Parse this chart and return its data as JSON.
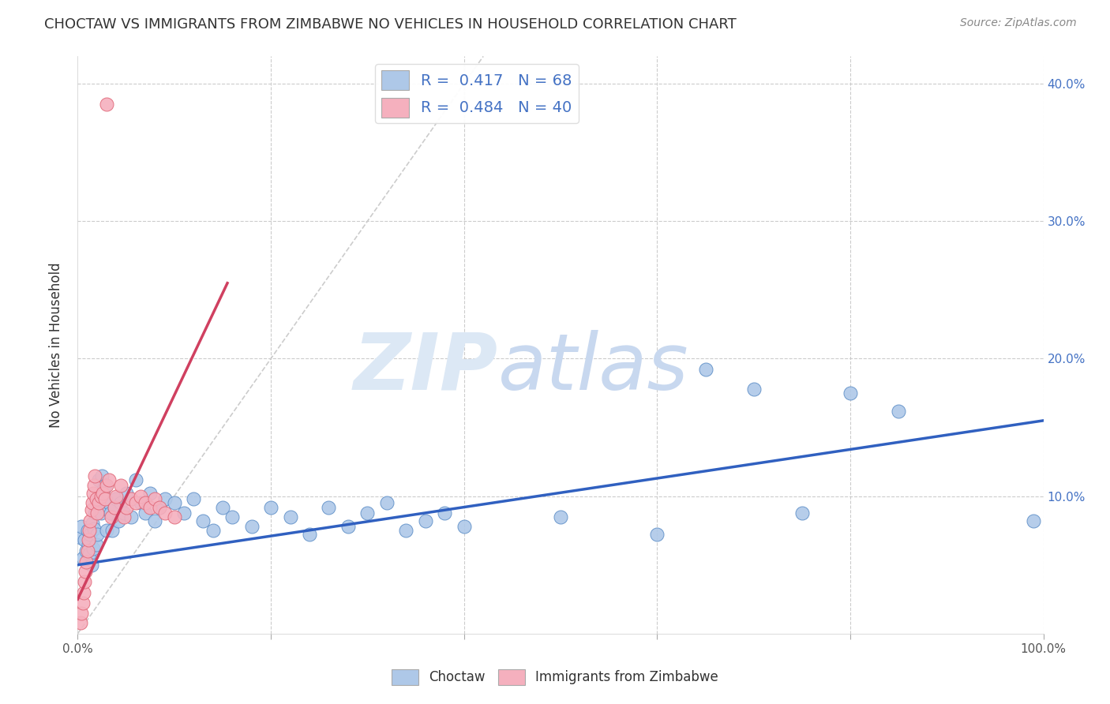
{
  "title": "CHOCTAW VS IMMIGRANTS FROM ZIMBABWE NO VEHICLES IN HOUSEHOLD CORRELATION CHART",
  "source": "Source: ZipAtlas.com",
  "ylabel": "No Vehicles in Household",
  "xlim": [
    0,
    1.0
  ],
  "ylim": [
    0,
    0.42
  ],
  "blue_R": 0.417,
  "blue_N": 68,
  "pink_R": 0.484,
  "pink_N": 40,
  "blue_color": "#aec8e8",
  "pink_color": "#f5b0be",
  "blue_edge_color": "#6090c8",
  "pink_edge_color": "#e06878",
  "blue_line_color": "#3060c0",
  "pink_line_color": "#d04060",
  "legend_label_blue": "Choctaw",
  "legend_label_pink": "Immigrants from Zimbabwe",
  "blue_trend_x": [
    0.0,
    1.0
  ],
  "blue_trend_y": [
    0.05,
    0.155
  ],
  "pink_trend_x": [
    0.0,
    0.155
  ],
  "pink_trend_y": [
    0.025,
    0.255
  ],
  "diag_line_x": [
    0.0,
    0.42
  ],
  "diag_line_y": [
    0.0,
    0.42
  ],
  "blue_scatter": [
    [
      0.003,
      0.07
    ],
    [
      0.004,
      0.078
    ],
    [
      0.005,
      0.055
    ],
    [
      0.007,
      0.068
    ],
    [
      0.009,
      0.06
    ],
    [
      0.01,
      0.075
    ],
    [
      0.011,
      0.065
    ],
    [
      0.012,
      0.058
    ],
    [
      0.013,
      0.072
    ],
    [
      0.014,
      0.05
    ],
    [
      0.015,
      0.08
    ],
    [
      0.016,
      0.062
    ],
    [
      0.017,
      0.076
    ],
    [
      0.018,
      0.088
    ],
    [
      0.019,
      0.065
    ],
    [
      0.02,
      0.072
    ],
    [
      0.022,
      0.112
    ],
    [
      0.023,
      0.095
    ],
    [
      0.024,
      0.088
    ],
    [
      0.025,
      0.115
    ],
    [
      0.026,
      0.098
    ],
    [
      0.027,
      0.105
    ],
    [
      0.028,
      0.108
    ],
    [
      0.03,
      0.075
    ],
    [
      0.032,
      0.095
    ],
    [
      0.034,
      0.088
    ],
    [
      0.036,
      0.075
    ],
    [
      0.038,
      0.092
    ],
    [
      0.04,
      0.098
    ],
    [
      0.042,
      0.082
    ],
    [
      0.045,
      0.095
    ],
    [
      0.048,
      0.088
    ],
    [
      0.05,
      0.102
    ],
    [
      0.055,
      0.085
    ],
    [
      0.06,
      0.112
    ],
    [
      0.065,
      0.095
    ],
    [
      0.07,
      0.088
    ],
    [
      0.075,
      0.102
    ],
    [
      0.08,
      0.082
    ],
    [
      0.085,
      0.092
    ],
    [
      0.09,
      0.098
    ],
    [
      0.1,
      0.095
    ],
    [
      0.11,
      0.088
    ],
    [
      0.12,
      0.098
    ],
    [
      0.13,
      0.082
    ],
    [
      0.14,
      0.075
    ],
    [
      0.15,
      0.092
    ],
    [
      0.16,
      0.085
    ],
    [
      0.18,
      0.078
    ],
    [
      0.2,
      0.092
    ],
    [
      0.22,
      0.085
    ],
    [
      0.24,
      0.072
    ],
    [
      0.26,
      0.092
    ],
    [
      0.28,
      0.078
    ],
    [
      0.3,
      0.088
    ],
    [
      0.32,
      0.095
    ],
    [
      0.34,
      0.075
    ],
    [
      0.36,
      0.082
    ],
    [
      0.38,
      0.088
    ],
    [
      0.4,
      0.078
    ],
    [
      0.5,
      0.085
    ],
    [
      0.6,
      0.072
    ],
    [
      0.65,
      0.192
    ],
    [
      0.7,
      0.178
    ],
    [
      0.75,
      0.088
    ],
    [
      0.8,
      0.175
    ],
    [
      0.85,
      0.162
    ],
    [
      0.99,
      0.082
    ]
  ],
  "pink_scatter": [
    [
      0.003,
      0.008
    ],
    [
      0.004,
      0.015
    ],
    [
      0.005,
      0.022
    ],
    [
      0.006,
      0.03
    ],
    [
      0.007,
      0.038
    ],
    [
      0.008,
      0.045
    ],
    [
      0.009,
      0.052
    ],
    [
      0.01,
      0.06
    ],
    [
      0.011,
      0.068
    ],
    [
      0.012,
      0.075
    ],
    [
      0.013,
      0.082
    ],
    [
      0.014,
      0.09
    ],
    [
      0.015,
      0.095
    ],
    [
      0.016,
      0.102
    ],
    [
      0.017,
      0.108
    ],
    [
      0.018,
      0.115
    ],
    [
      0.019,
      0.098
    ],
    [
      0.02,
      0.088
    ],
    [
      0.022,
      0.095
    ],
    [
      0.024,
      0.1
    ],
    [
      0.026,
      0.102
    ],
    [
      0.028,
      0.098
    ],
    [
      0.03,
      0.108
    ],
    [
      0.032,
      0.112
    ],
    [
      0.035,
      0.085
    ],
    [
      0.038,
      0.092
    ],
    [
      0.04,
      0.1
    ],
    [
      0.045,
      0.108
    ],
    [
      0.048,
      0.085
    ],
    [
      0.05,
      0.092
    ],
    [
      0.055,
      0.098
    ],
    [
      0.06,
      0.095
    ],
    [
      0.065,
      0.1
    ],
    [
      0.07,
      0.095
    ],
    [
      0.075,
      0.092
    ],
    [
      0.08,
      0.098
    ],
    [
      0.085,
      0.092
    ],
    [
      0.09,
      0.088
    ],
    [
      0.1,
      0.085
    ],
    [
      0.03,
      0.385
    ]
  ]
}
